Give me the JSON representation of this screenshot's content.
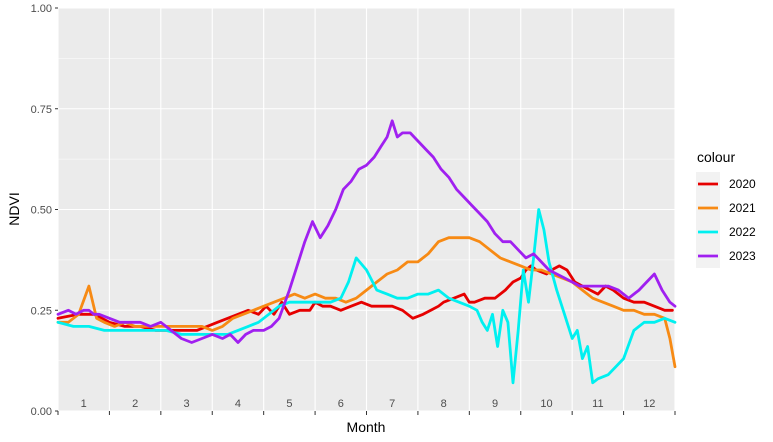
{
  "chart_data": {
    "type": "line",
    "xlabel": "Month",
    "ylabel": "NDVI",
    "xlim": [
      0.5,
      12.5
    ],
    "ylim": [
      0.0,
      1.0
    ],
    "x_ticks": [
      "1",
      "2",
      "3",
      "4",
      "5",
      "6",
      "7",
      "8",
      "9",
      "10",
      "11",
      "12"
    ],
    "y_ticks": [
      "0.00",
      "0.25",
      "0.50",
      "0.75",
      "1.00"
    ],
    "grid": true,
    "legend_title": "colour",
    "legend_position": "right",
    "series": [
      {
        "name": "2020",
        "color": "#e60000",
        "x": [
          0.5,
          0.9,
          1.2,
          1.5,
          1.8,
          2.1,
          2.4,
          2.7,
          3.0,
          3.2,
          3.4,
          3.6,
          3.8,
          4.0,
          4.2,
          4.4,
          4.55,
          4.7,
          4.85,
          5.0,
          5.2,
          5.4,
          5.5,
          5.65,
          5.8,
          6.0,
          6.2,
          6.4,
          6.6,
          6.8,
          7.0,
          7.2,
          7.4,
          7.6,
          7.75,
          7.9,
          8.0,
          8.2,
          8.4,
          8.5,
          8.6,
          8.8,
          9.0,
          9.2,
          9.35,
          9.5,
          9.6,
          9.7,
          9.8,
          10.0,
          10.1,
          10.25,
          10.4,
          10.55,
          10.7,
          10.85,
          11.0,
          11.15,
          11.3,
          11.5,
          11.7,
          11.9,
          12.1,
          12.3,
          12.45
        ],
        "y": [
          0.23,
          0.24,
          0.24,
          0.22,
          0.21,
          0.21,
          0.2,
          0.2,
          0.2,
          0.2,
          0.21,
          0.22,
          0.23,
          0.24,
          0.25,
          0.24,
          0.26,
          0.24,
          0.27,
          0.24,
          0.25,
          0.25,
          0.27,
          0.26,
          0.26,
          0.25,
          0.26,
          0.27,
          0.26,
          0.26,
          0.26,
          0.25,
          0.23,
          0.24,
          0.25,
          0.26,
          0.27,
          0.28,
          0.29,
          0.27,
          0.27,
          0.28,
          0.28,
          0.3,
          0.32,
          0.33,
          0.35,
          0.36,
          0.35,
          0.34,
          0.35,
          0.36,
          0.35,
          0.32,
          0.31,
          0.3,
          0.29,
          0.31,
          0.3,
          0.28,
          0.27,
          0.27,
          0.26,
          0.25,
          0.25
        ]
      },
      {
        "name": "2021",
        "color": "#f78a14",
        "x": [
          0.5,
          0.7,
          0.9,
          1.1,
          1.25,
          1.4,
          1.6,
          1.8,
          2.0,
          2.2,
          2.5,
          2.8,
          3.1,
          3.3,
          3.5,
          3.7,
          3.9,
          4.1,
          4.3,
          4.5,
          4.7,
          4.9,
          5.1,
          5.3,
          5.5,
          5.7,
          5.9,
          6.1,
          6.3,
          6.5,
          6.7,
          6.9,
          7.1,
          7.3,
          7.5,
          7.7,
          7.9,
          8.1,
          8.3,
          8.5,
          8.7,
          8.9,
          9.1,
          9.3,
          9.5,
          9.7,
          9.9,
          10.1,
          10.3,
          10.5,
          10.7,
          10.9,
          11.1,
          11.3,
          11.5,
          11.7,
          11.9,
          12.1,
          12.3,
          12.4,
          12.5
        ],
        "y": [
          0.22,
          0.22,
          0.24,
          0.31,
          0.23,
          0.22,
          0.21,
          0.22,
          0.21,
          0.21,
          0.21,
          0.21,
          0.21,
          0.21,
          0.2,
          0.21,
          0.23,
          0.24,
          0.25,
          0.26,
          0.27,
          0.28,
          0.29,
          0.28,
          0.29,
          0.28,
          0.28,
          0.27,
          0.28,
          0.3,
          0.32,
          0.34,
          0.35,
          0.37,
          0.37,
          0.39,
          0.42,
          0.43,
          0.43,
          0.43,
          0.42,
          0.4,
          0.38,
          0.37,
          0.36,
          0.35,
          0.35,
          0.34,
          0.33,
          0.32,
          0.3,
          0.28,
          0.27,
          0.26,
          0.25,
          0.25,
          0.24,
          0.24,
          0.23,
          0.18,
          0.11
        ]
      },
      {
        "name": "2022",
        "color": "#00f0f0",
        "x": [
          0.5,
          0.8,
          1.1,
          1.4,
          1.7,
          2.0,
          2.3,
          2.6,
          2.9,
          3.2,
          3.5,
          3.8,
          4.0,
          4.2,
          4.4,
          4.6,
          4.8,
          5.0,
          5.2,
          5.4,
          5.6,
          5.8,
          6.0,
          6.15,
          6.3,
          6.5,
          6.7,
          6.9,
          7.1,
          7.3,
          7.5,
          7.7,
          7.9,
          8.1,
          8.3,
          8.5,
          8.65,
          8.75,
          8.85,
          8.95,
          9.05,
          9.15,
          9.25,
          9.35,
          9.45,
          9.55,
          9.65,
          9.75,
          9.85,
          9.95,
          10.05,
          10.2,
          10.35,
          10.5,
          10.6,
          10.7,
          10.8,
          10.9,
          11.0,
          11.2,
          11.5,
          11.7,
          11.9,
          12.1,
          12.3,
          12.5
        ],
        "y": [
          0.22,
          0.21,
          0.21,
          0.2,
          0.2,
          0.2,
          0.2,
          0.2,
          0.19,
          0.19,
          0.19,
          0.19,
          0.2,
          0.21,
          0.22,
          0.24,
          0.26,
          0.27,
          0.27,
          0.27,
          0.27,
          0.27,
          0.28,
          0.32,
          0.38,
          0.35,
          0.3,
          0.29,
          0.28,
          0.28,
          0.29,
          0.29,
          0.3,
          0.28,
          0.27,
          0.26,
          0.25,
          0.22,
          0.2,
          0.24,
          0.16,
          0.25,
          0.22,
          0.07,
          0.2,
          0.35,
          0.27,
          0.38,
          0.5,
          0.45,
          0.37,
          0.3,
          0.24,
          0.18,
          0.2,
          0.13,
          0.16,
          0.07,
          0.08,
          0.09,
          0.13,
          0.2,
          0.22,
          0.22,
          0.23,
          0.22
        ]
      },
      {
        "name": "2023",
        "color": "#a020f0",
        "x": [
          0.5,
          0.7,
          0.85,
          1.0,
          1.1,
          1.2,
          1.3,
          1.5,
          1.7,
          1.9,
          2.1,
          2.3,
          2.5,
          2.7,
          2.9,
          3.1,
          3.3,
          3.5,
          3.7,
          3.85,
          4.0,
          4.15,
          4.3,
          4.5,
          4.65,
          4.8,
          5.0,
          5.15,
          5.3,
          5.45,
          5.6,
          5.75,
          5.9,
          6.05,
          6.2,
          6.35,
          6.5,
          6.65,
          6.8,
          6.9,
          7.0,
          7.1,
          7.2,
          7.35,
          7.5,
          7.65,
          7.8,
          7.95,
          8.1,
          8.25,
          8.4,
          8.55,
          8.7,
          8.85,
          9.0,
          9.15,
          9.3,
          9.45,
          9.6,
          9.75,
          9.9,
          10.05,
          10.2,
          10.35,
          10.5,
          10.65,
          10.8,
          11.0,
          11.2,
          11.4,
          11.6,
          11.8,
          11.95,
          12.1,
          12.25,
          12.4,
          12.5
        ],
        "y": [
          0.24,
          0.25,
          0.24,
          0.25,
          0.25,
          0.24,
          0.24,
          0.23,
          0.22,
          0.22,
          0.22,
          0.21,
          0.22,
          0.2,
          0.18,
          0.17,
          0.18,
          0.19,
          0.18,
          0.19,
          0.17,
          0.19,
          0.2,
          0.2,
          0.21,
          0.23,
          0.3,
          0.36,
          0.42,
          0.47,
          0.43,
          0.46,
          0.5,
          0.55,
          0.57,
          0.6,
          0.61,
          0.63,
          0.66,
          0.68,
          0.72,
          0.68,
          0.69,
          0.69,
          0.67,
          0.65,
          0.63,
          0.6,
          0.58,
          0.55,
          0.53,
          0.51,
          0.49,
          0.47,
          0.44,
          0.42,
          0.42,
          0.4,
          0.38,
          0.39,
          0.37,
          0.35,
          0.34,
          0.33,
          0.32,
          0.31,
          0.31,
          0.31,
          0.31,
          0.3,
          0.28,
          0.3,
          0.32,
          0.34,
          0.3,
          0.27,
          0.26
        ]
      }
    ]
  }
}
